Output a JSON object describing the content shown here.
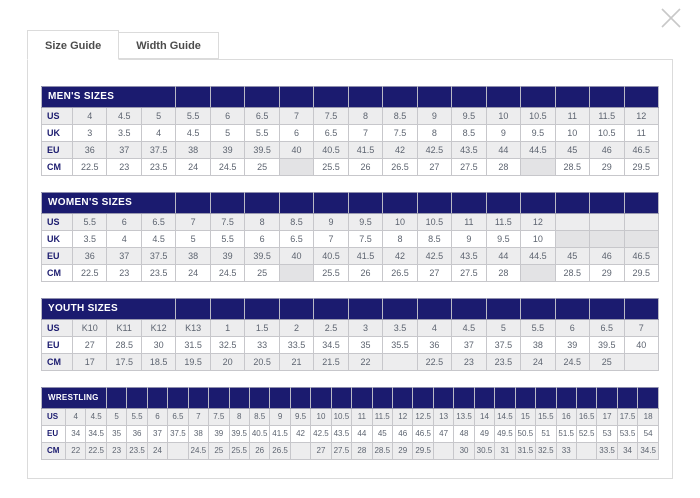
{
  "window": {
    "close_label": "close"
  },
  "tabs": [
    {
      "label": "Size Guide",
      "active": true
    },
    {
      "label": "Width Guide",
      "active": false
    }
  ],
  "colors": {
    "header_navy": "#1b1b6f",
    "row_shade": "#ededee",
    "empty_cell": "#e3e3e5",
    "cell_border": "#c7c7cb",
    "panel_border": "#dbdbdb"
  },
  "tables": [
    {
      "title": "MEN'S SIZES",
      "title_span": 4,
      "columns": 17,
      "rows": [
        {
          "label": "US",
          "values": [
            "4",
            "4.5",
            "5",
            "5.5",
            "6",
            "6.5",
            "7",
            "7.5",
            "8",
            "8.5",
            "9",
            "9.5",
            "10",
            "10.5",
            "11",
            "11.5",
            "12"
          ]
        },
        {
          "label": "UK",
          "values": [
            "3",
            "3.5",
            "4",
            "4.5",
            "5",
            "5.5",
            "6",
            "6.5",
            "7",
            "7.5",
            "8",
            "8.5",
            "9",
            "9.5",
            "10",
            "10.5",
            "11"
          ]
        },
        {
          "label": "EU",
          "values": [
            "36",
            "37",
            "37.5",
            "38",
            "39",
            "39.5",
            "40",
            "40.5",
            "41.5",
            "42",
            "42.5",
            "43.5",
            "44",
            "44.5",
            "45",
            "46",
            "46.5"
          ]
        },
        {
          "label": "CM",
          "values": [
            "22.5",
            "23",
            "23.5",
            "24",
            "24.5",
            "25",
            "",
            "25.5",
            "26",
            "26.5",
            "27",
            "27.5",
            "28",
            "",
            "28.5",
            "29",
            "29.5"
          ]
        }
      ]
    },
    {
      "title": "WOMEN'S SIZES",
      "title_span": 4,
      "columns": 17,
      "rows": [
        {
          "label": "US",
          "values": [
            "5.5",
            "6",
            "6.5",
            "7",
            "7.5",
            "8",
            "8.5",
            "9",
            "9.5",
            "10",
            "10.5",
            "11",
            "11.5",
            "12",
            "",
            "",
            ""
          ]
        },
        {
          "label": "UK",
          "values": [
            "3.5",
            "4",
            "4.5",
            "5",
            "5.5",
            "6",
            "6.5",
            "7",
            "7.5",
            "8",
            "8.5",
            "9",
            "9.5",
            "10",
            "",
            "",
            ""
          ]
        },
        {
          "label": "EU",
          "values": [
            "36",
            "37",
            "37.5",
            "38",
            "39",
            "39.5",
            "40",
            "40.5",
            "41.5",
            "42",
            "42.5",
            "43.5",
            "44",
            "44.5",
            "45",
            "46",
            "46.5"
          ]
        },
        {
          "label": "CM",
          "values": [
            "22.5",
            "23",
            "23.5",
            "24",
            "24.5",
            "25",
            "",
            "25.5",
            "26",
            "26.5",
            "27",
            "27.5",
            "28",
            "",
            "28.5",
            "29",
            "29.5"
          ]
        }
      ]
    },
    {
      "title": "YOUTH SIZES",
      "title_span": 4,
      "columns": 17,
      "rows": [
        {
          "label": "US",
          "values": [
            "K10",
            "K11",
            "K12",
            "K13",
            "1",
            "1.5",
            "2",
            "2.5",
            "3",
            "3.5",
            "4",
            "4.5",
            "5",
            "5.5",
            "6",
            "6.5",
            "7"
          ]
        },
        {
          "label": "EU",
          "values": [
            "27",
            "28.5",
            "30",
            "31.5",
            "32.5",
            "33",
            "33.5",
            "34.5",
            "35",
            "35.5",
            "36",
            "37",
            "37.5",
            "38",
            "39",
            "39.5",
            "40"
          ]
        },
        {
          "label": "CM",
          "values": [
            "17",
            "17.5",
            "18.5",
            "19.5",
            "20",
            "20.5",
            "21",
            "21.5",
            "22",
            "",
            "22.5",
            "23",
            "23.5",
            "24",
            "24.5",
            "25",
            ""
          ]
        }
      ]
    },
    {
      "title": "WRESTLING",
      "title_span": 3,
      "columns": 29,
      "rows": [
        {
          "label": "US",
          "values": [
            "4",
            "4.5",
            "5",
            "5.5",
            "6",
            "6.5",
            "7",
            "7.5",
            "8",
            "8.5",
            "9",
            "9.5",
            "10",
            "10.5",
            "11",
            "11.5",
            "12",
            "12.5",
            "13",
            "13.5",
            "14",
            "14.5",
            "15",
            "15.5",
            "16",
            "16.5",
            "17",
            "17.5",
            "18"
          ]
        },
        {
          "label": "EU",
          "values": [
            "34",
            "34.5",
            "35",
            "36",
            "37",
            "37.5",
            "38",
            "39",
            "39.5",
            "40.5",
            "41.5",
            "42",
            "42.5",
            "43.5",
            "44",
            "45",
            "46",
            "46.5",
            "47",
            "48",
            "49",
            "49.5",
            "50.5",
            "51",
            "51.5",
            "52.5",
            "53",
            "53.5",
            "54"
          ]
        },
        {
          "label": "CM",
          "values": [
            "22",
            "22.5",
            "23",
            "23.5",
            "24",
            "",
            "24.5",
            "25",
            "25.5",
            "26",
            "26.5",
            "",
            "27",
            "27.5",
            "28",
            "28.5",
            "29",
            "29.5",
            "",
            "30",
            "30.5",
            "31",
            "31.5",
            "32.5",
            "33",
            "",
            "33.5",
            "34",
            "34.5"
          ]
        }
      ]
    }
  ]
}
